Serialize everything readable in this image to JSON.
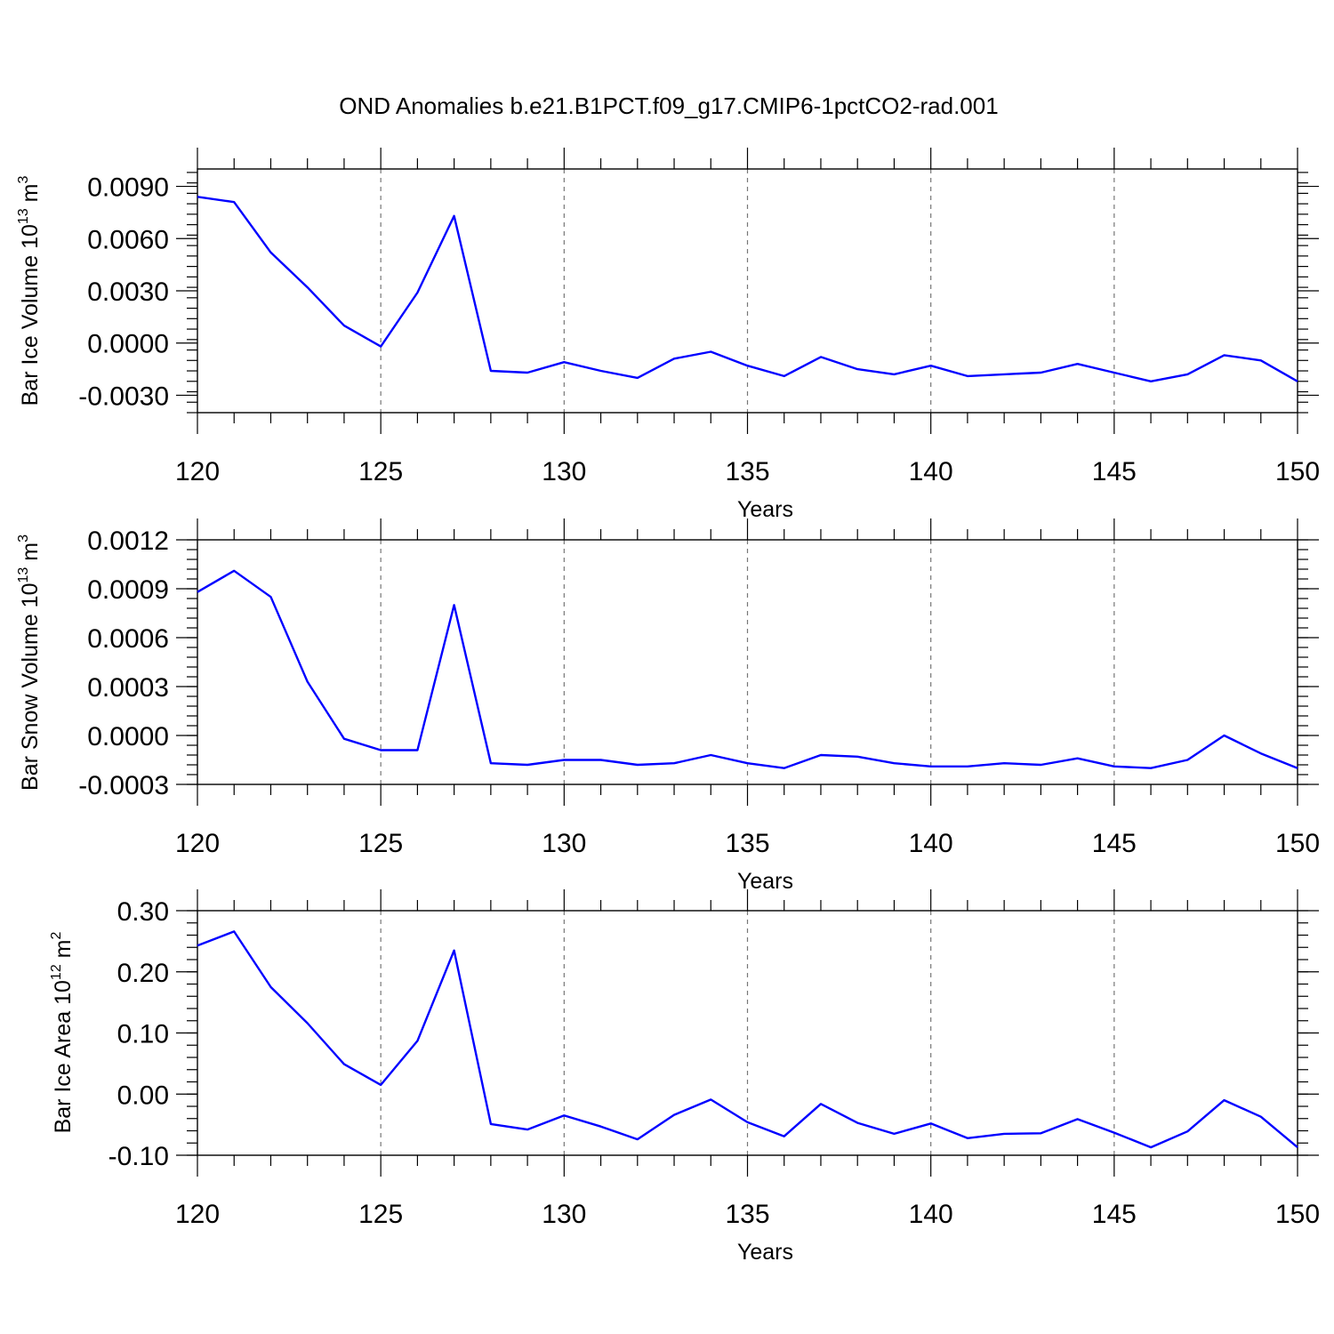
{
  "title": "OND Anomalies b.e21.B1PCT.f09_g17.CMIP6-1pctCO2-rad.001",
  "series_color": "#0000ff",
  "chart_data": [
    {
      "type": "line",
      "ylabel": "Bar Ice Volume 10",
      "ylabel_exp": "13",
      "ylabel_unit": " m",
      "ylabel_unit_exp": "3",
      "xlabel": "Years",
      "xlim": [
        120,
        150
      ],
      "ylim": [
        -0.004,
        0.01
      ],
      "grid": "vertical dashed",
      "xticks": [
        120,
        125,
        130,
        135,
        140,
        145,
        150
      ],
      "xtick_labels": [
        "120",
        "125",
        "130",
        "135",
        "140",
        "145",
        "150"
      ],
      "yticks": [
        0.009,
        0.006,
        0.003,
        0.0,
        -0.003
      ],
      "ytick_labels": [
        "0.0090",
        "0.0060",
        "0.0030",
        "0.0000",
        "-0.0030"
      ],
      "x": [
        120,
        121,
        122,
        123,
        124,
        125,
        126,
        127,
        128,
        129,
        130,
        131,
        132,
        133,
        134,
        135,
        136,
        137,
        138,
        139,
        140,
        141,
        142,
        143,
        144,
        145,
        146,
        147,
        148,
        149,
        150
      ],
      "values": [
        0.0084,
        0.0081,
        0.0052,
        0.0032,
        0.001,
        -0.0002,
        0.0029,
        0.0073,
        -0.0016,
        -0.0017,
        -0.0011,
        -0.0016,
        -0.002,
        -0.0009,
        -0.0005,
        -0.0013,
        -0.0019,
        -0.0008,
        -0.0015,
        -0.0018,
        -0.0013,
        -0.0019,
        -0.0018,
        -0.0017,
        -0.0012,
        -0.0017,
        -0.0022,
        -0.0018,
        -0.0007,
        -0.001,
        -0.0022
      ]
    },
    {
      "type": "line",
      "ylabel": "Bar Snow Volume 10",
      "ylabel_exp": "13",
      "ylabel_unit": " m",
      "ylabel_unit_exp": "3",
      "xlabel": "Years",
      "xlim": [
        120,
        150
      ],
      "ylim": [
        -0.0003,
        0.0012
      ],
      "grid": "vertical dashed",
      "xticks": [
        120,
        125,
        130,
        135,
        140,
        145,
        150
      ],
      "xtick_labels": [
        "120",
        "125",
        "130",
        "135",
        "140",
        "145",
        "150"
      ],
      "yticks": [
        0.0012,
        0.0009,
        0.0006,
        0.0003,
        0.0,
        -0.0003
      ],
      "ytick_labels": [
        "0.0012",
        "0.0009",
        "0.0006",
        "0.0003",
        "0.0000",
        "-0.0003"
      ],
      "x": [
        120,
        121,
        122,
        123,
        124,
        125,
        126,
        127,
        128,
        129,
        130,
        131,
        132,
        133,
        134,
        135,
        136,
        137,
        138,
        139,
        140,
        141,
        142,
        143,
        144,
        145,
        146,
        147,
        148,
        149,
        150
      ],
      "values": [
        0.00088,
        0.00101,
        0.00085,
        0.00033,
        -2e-05,
        -9e-05,
        -9e-05,
        0.0008,
        -0.00017,
        -0.00018,
        -0.00015,
        -0.00015,
        -0.00018,
        -0.00017,
        -0.00012,
        -0.00017,
        -0.0002,
        -0.00012,
        -0.00013,
        -0.00017,
        -0.00019,
        -0.00019,
        -0.00017,
        -0.00018,
        -0.00014,
        -0.00019,
        -0.0002,
        -0.00015,
        0.0,
        -0.00011,
        -0.0002
      ]
    },
    {
      "type": "line",
      "ylabel": "Bar Ice Area 10",
      "ylabel_exp": "12",
      "ylabel_unit": " m",
      "ylabel_unit_exp": "2",
      "xlabel": "Years",
      "xlim": [
        120,
        150
      ],
      "ylim": [
        -0.1,
        0.3
      ],
      "grid": "vertical dashed",
      "xticks": [
        120,
        125,
        130,
        135,
        140,
        145,
        150
      ],
      "xtick_labels": [
        "120",
        "125",
        "130",
        "135",
        "140",
        "145",
        "150"
      ],
      "yticks": [
        0.3,
        0.2,
        0.1,
        0.0,
        -0.1
      ],
      "ytick_labels": [
        "0.30",
        "0.20",
        "0.10",
        "0.00",
        "-0.10"
      ],
      "x": [
        120,
        121,
        122,
        123,
        124,
        125,
        126,
        127,
        128,
        129,
        130,
        131,
        132,
        133,
        134,
        135,
        136,
        137,
        138,
        139,
        140,
        141,
        142,
        143,
        144,
        145,
        146,
        147,
        148,
        149,
        150
      ],
      "values": [
        0.243,
        0.266,
        0.175,
        0.116,
        0.049,
        0.015,
        0.087,
        0.235,
        -0.049,
        -0.058,
        -0.035,
        -0.053,
        -0.074,
        -0.034,
        -0.009,
        -0.046,
        -0.069,
        -0.016,
        -0.047,
        -0.065,
        -0.048,
        -0.072,
        -0.065,
        -0.064,
        -0.041,
        -0.063,
        -0.087,
        -0.061,
        -0.01,
        -0.037,
        -0.087
      ]
    }
  ]
}
